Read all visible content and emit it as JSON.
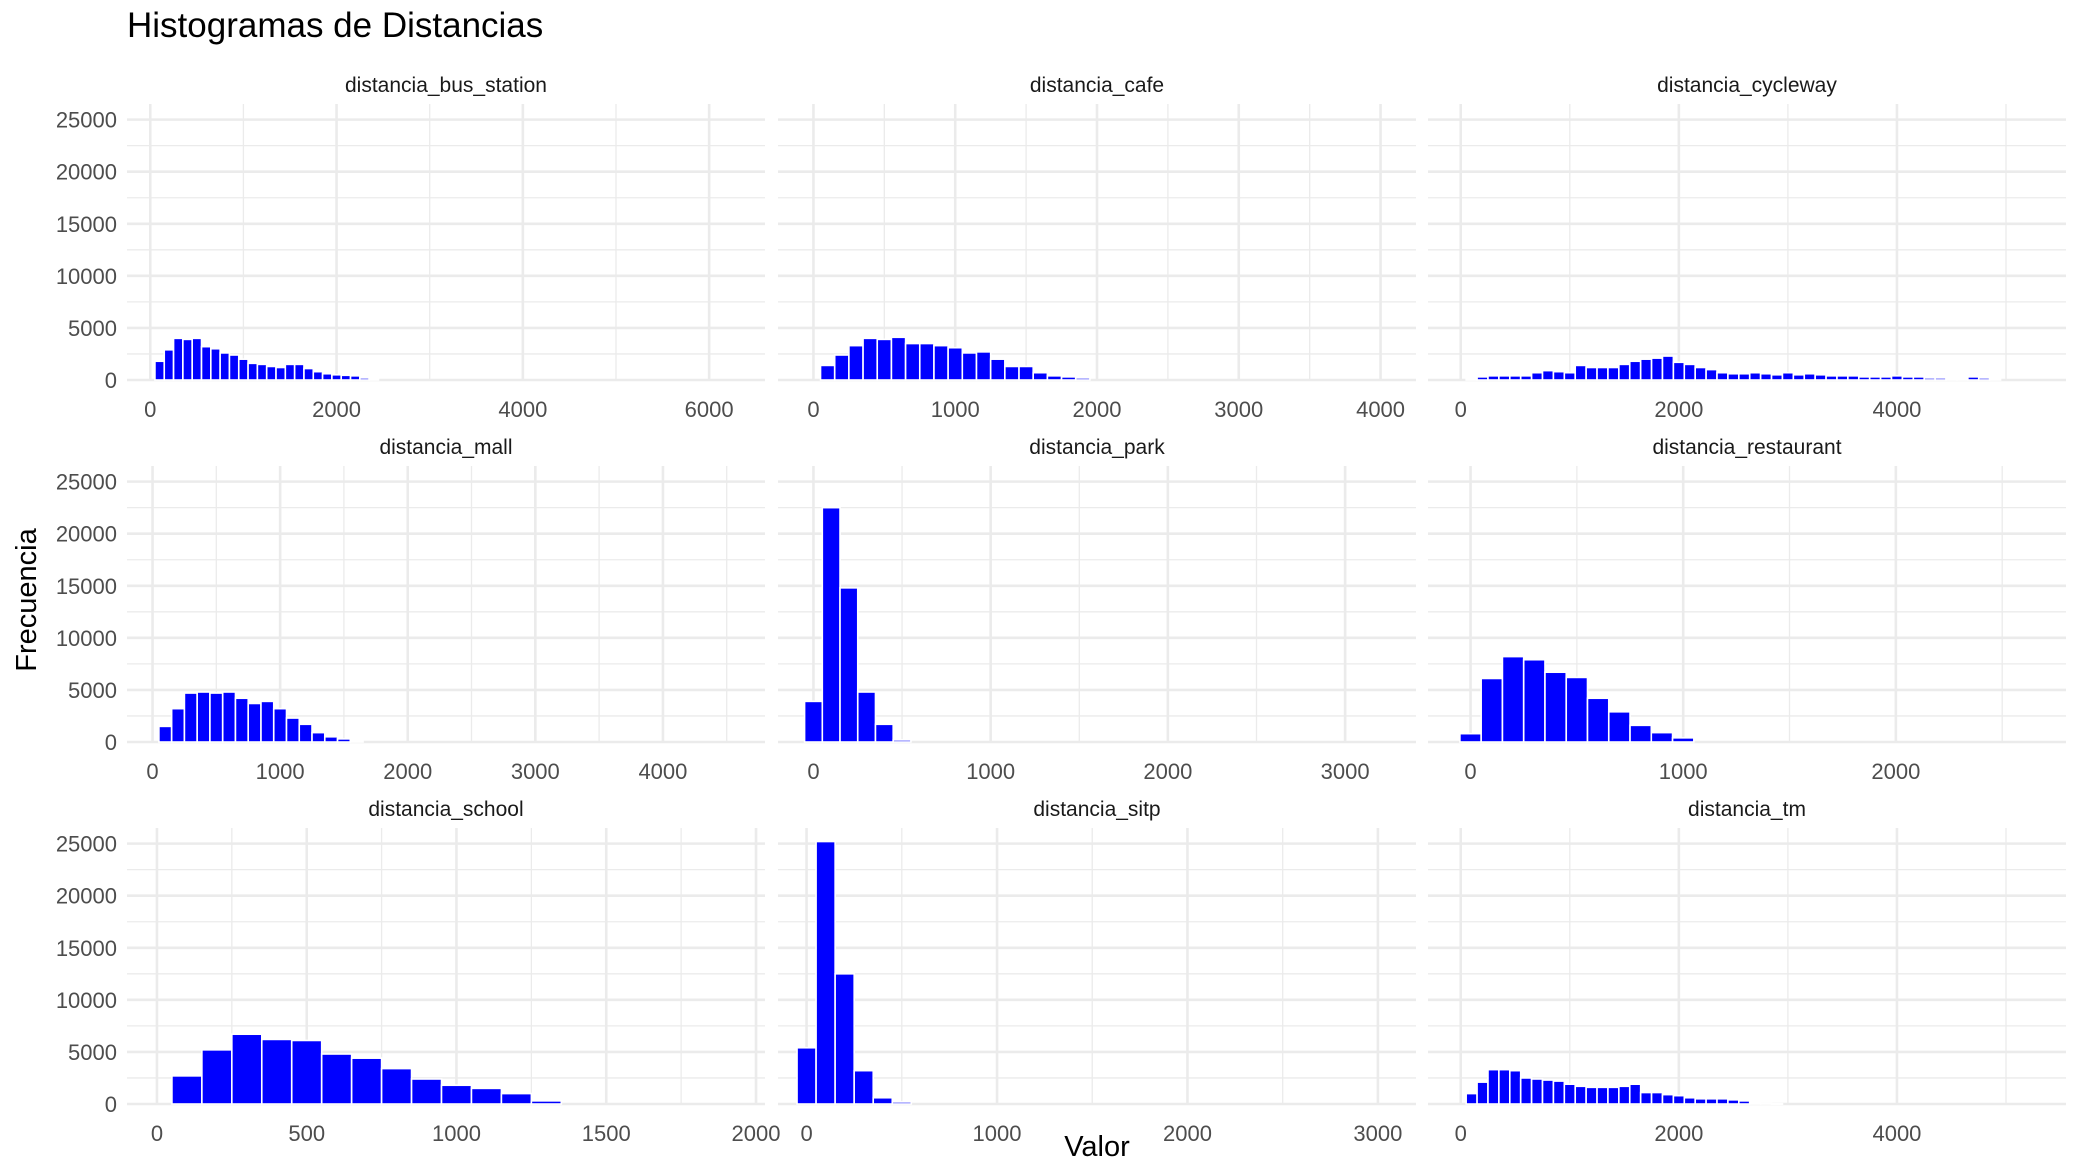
{
  "chart_data": {
    "type": "bar",
    "title": "Histogramas de Distancias",
    "xlabel": "Valor",
    "ylabel": "Frecuencia",
    "grid": true,
    "fill_color": "#0000ff",
    "y_ticks": [
      0,
      5000,
      10000,
      15000,
      20000,
      25000
    ],
    "ylim": [
      0,
      26500
    ],
    "facets": [
      {
        "name": "distancia_bus_station",
        "xlim": [
          -250,
          6600
        ],
        "x_ticks": [
          0,
          2000,
          4000,
          6000
        ],
        "bin_width": 100,
        "x": [
          100,
          200,
          300,
          400,
          500,
          600,
          700,
          800,
          900,
          1000,
          1100,
          1200,
          1300,
          1400,
          1500,
          1600,
          1700,
          1800,
          1900,
          2000,
          2100,
          2200,
          2300,
          2400
        ],
        "values": [
          1800,
          2900,
          4000,
          3900,
          4000,
          3200,
          3000,
          2600,
          2400,
          2000,
          1600,
          1500,
          1300,
          1200,
          1500,
          1500,
          1100,
          800,
          600,
          500,
          450,
          400,
          200,
          150
        ]
      },
      {
        "name": "distancia_cafe",
        "xlim": [
          -250,
          4250
        ],
        "x_ticks": [
          0,
          1000,
          2000,
          3000,
          4000
        ],
        "bin_width": 100,
        "x": [
          100,
          200,
          300,
          400,
          500,
          600,
          700,
          800,
          900,
          1000,
          1100,
          1200,
          1300,
          1400,
          1500,
          1600,
          1700,
          1800,
          1900
        ],
        "values": [
          1400,
          2400,
          3300,
          4000,
          3900,
          4100,
          3500,
          3500,
          3300,
          3100,
          2600,
          2700,
          2000,
          1300,
          1300,
          700,
          400,
          300,
          200
        ]
      },
      {
        "name": "distancia_cycleway",
        "xlim": [
          -300,
          5550
        ],
        "x_ticks": [
          0,
          2000,
          4000
        ],
        "bin_width": 100,
        "x": [
          100,
          200,
          300,
          400,
          500,
          600,
          700,
          800,
          900,
          1000,
          1100,
          1200,
          1300,
          1400,
          1500,
          1600,
          1700,
          1800,
          1900,
          2000,
          2100,
          2200,
          2300,
          2400,
          2500,
          2600,
          2700,
          2800,
          2900,
          3000,
          3100,
          3200,
          3300,
          3400,
          3500,
          3600,
          3700,
          3800,
          3900,
          4000,
          4100,
          4200,
          4300,
          4400,
          4500,
          4600,
          4700,
          4800,
          4900
        ],
        "values": [
          100,
          300,
          400,
          400,
          400,
          400,
          700,
          900,
          800,
          700,
          1400,
          1200,
          1200,
          1200,
          1500,
          1800,
          2000,
          2100,
          2300,
          1700,
          1500,
          1200,
          1000,
          700,
          600,
          600,
          700,
          600,
          500,
          700,
          500,
          600,
          500,
          400,
          400,
          400,
          300,
          300,
          300,
          400,
          300,
          300,
          200,
          200,
          150,
          100,
          300,
          200,
          150
        ]
      },
      {
        "name": "distancia_mall",
        "xlim": [
          -200,
          4800
        ],
        "x_ticks": [
          0,
          1000,
          2000,
          3000,
          4000
        ],
        "bin_width": 100,
        "x": [
          100,
          200,
          300,
          400,
          500,
          600,
          700,
          800,
          900,
          1000,
          1100,
          1200,
          1300,
          1400,
          1500,
          1600
        ],
        "values": [
          1500,
          3200,
          4700,
          4800,
          4700,
          4800,
          4200,
          3700,
          3900,
          3200,
          2300,
          1700,
          900,
          500,
          300,
          150
        ]
      },
      {
        "name": "distancia_park",
        "xlim": [
          -200,
          3400
        ],
        "x_ticks": [
          0,
          1000,
          2000,
          3000
        ],
        "bin_width": 100,
        "x": [
          0,
          100,
          200,
          300,
          400,
          500
        ],
        "values": [
          3900,
          22500,
          14800,
          4800,
          1700,
          200
        ]
      },
      {
        "name": "distancia_restaurant",
        "xlim": [
          -200,
          2800
        ],
        "x_ticks": [
          0,
          1000,
          2000
        ],
        "bin_width": 100,
        "x": [
          0,
          100,
          200,
          300,
          400,
          500,
          600,
          700,
          800,
          900,
          1000
        ],
        "values": [
          800,
          6100,
          8200,
          7900,
          6700,
          6200,
          4200,
          2900,
          1600,
          900,
          400
        ]
      },
      {
        "name": "distancia_school",
        "xlim": [
          -100,
          2030
        ],
        "x_ticks": [
          0,
          500,
          1000,
          1500,
          2000
        ],
        "bin_width": 100,
        "x": [
          100,
          200,
          300,
          400,
          500,
          600,
          700,
          800,
          900,
          1000,
          1100,
          1200,
          1300
        ],
        "values": [
          2700,
          5200,
          6700,
          6200,
          6100,
          4800,
          4400,
          3400,
          2400,
          1800,
          1500,
          1000,
          300
        ]
      },
      {
        "name": "distancia_sitp",
        "xlim": [
          -150,
          3200
        ],
        "x_ticks": [
          0,
          1000,
          2000,
          3000
        ],
        "bin_width": 100,
        "x": [
          0,
          100,
          200,
          300,
          400,
          500
        ],
        "values": [
          5400,
          25200,
          12500,
          3200,
          600,
          200
        ]
      },
      {
        "name": "distancia_tm",
        "xlim": [
          -300,
          5550
        ],
        "x_ticks": [
          0,
          2000,
          4000
        ],
        "bin_width": 100,
        "x": [
          100,
          200,
          300,
          400,
          500,
          600,
          700,
          800,
          900,
          1000,
          1100,
          1200,
          1300,
          1400,
          1500,
          1600,
          1700,
          1800,
          1900,
          2000,
          2100,
          2200,
          2300,
          2400,
          2500,
          2600,
          2700,
          2800,
          2900
        ],
        "values": [
          1000,
          2100,
          3300,
          3300,
          3200,
          2500,
          2400,
          2300,
          2200,
          1900,
          1700,
          1600,
          1600,
          1600,
          1700,
          1900,
          1100,
          1100,
          900,
          800,
          600,
          500,
          500,
          500,
          400,
          300,
          100,
          50,
          30
        ]
      }
    ]
  }
}
